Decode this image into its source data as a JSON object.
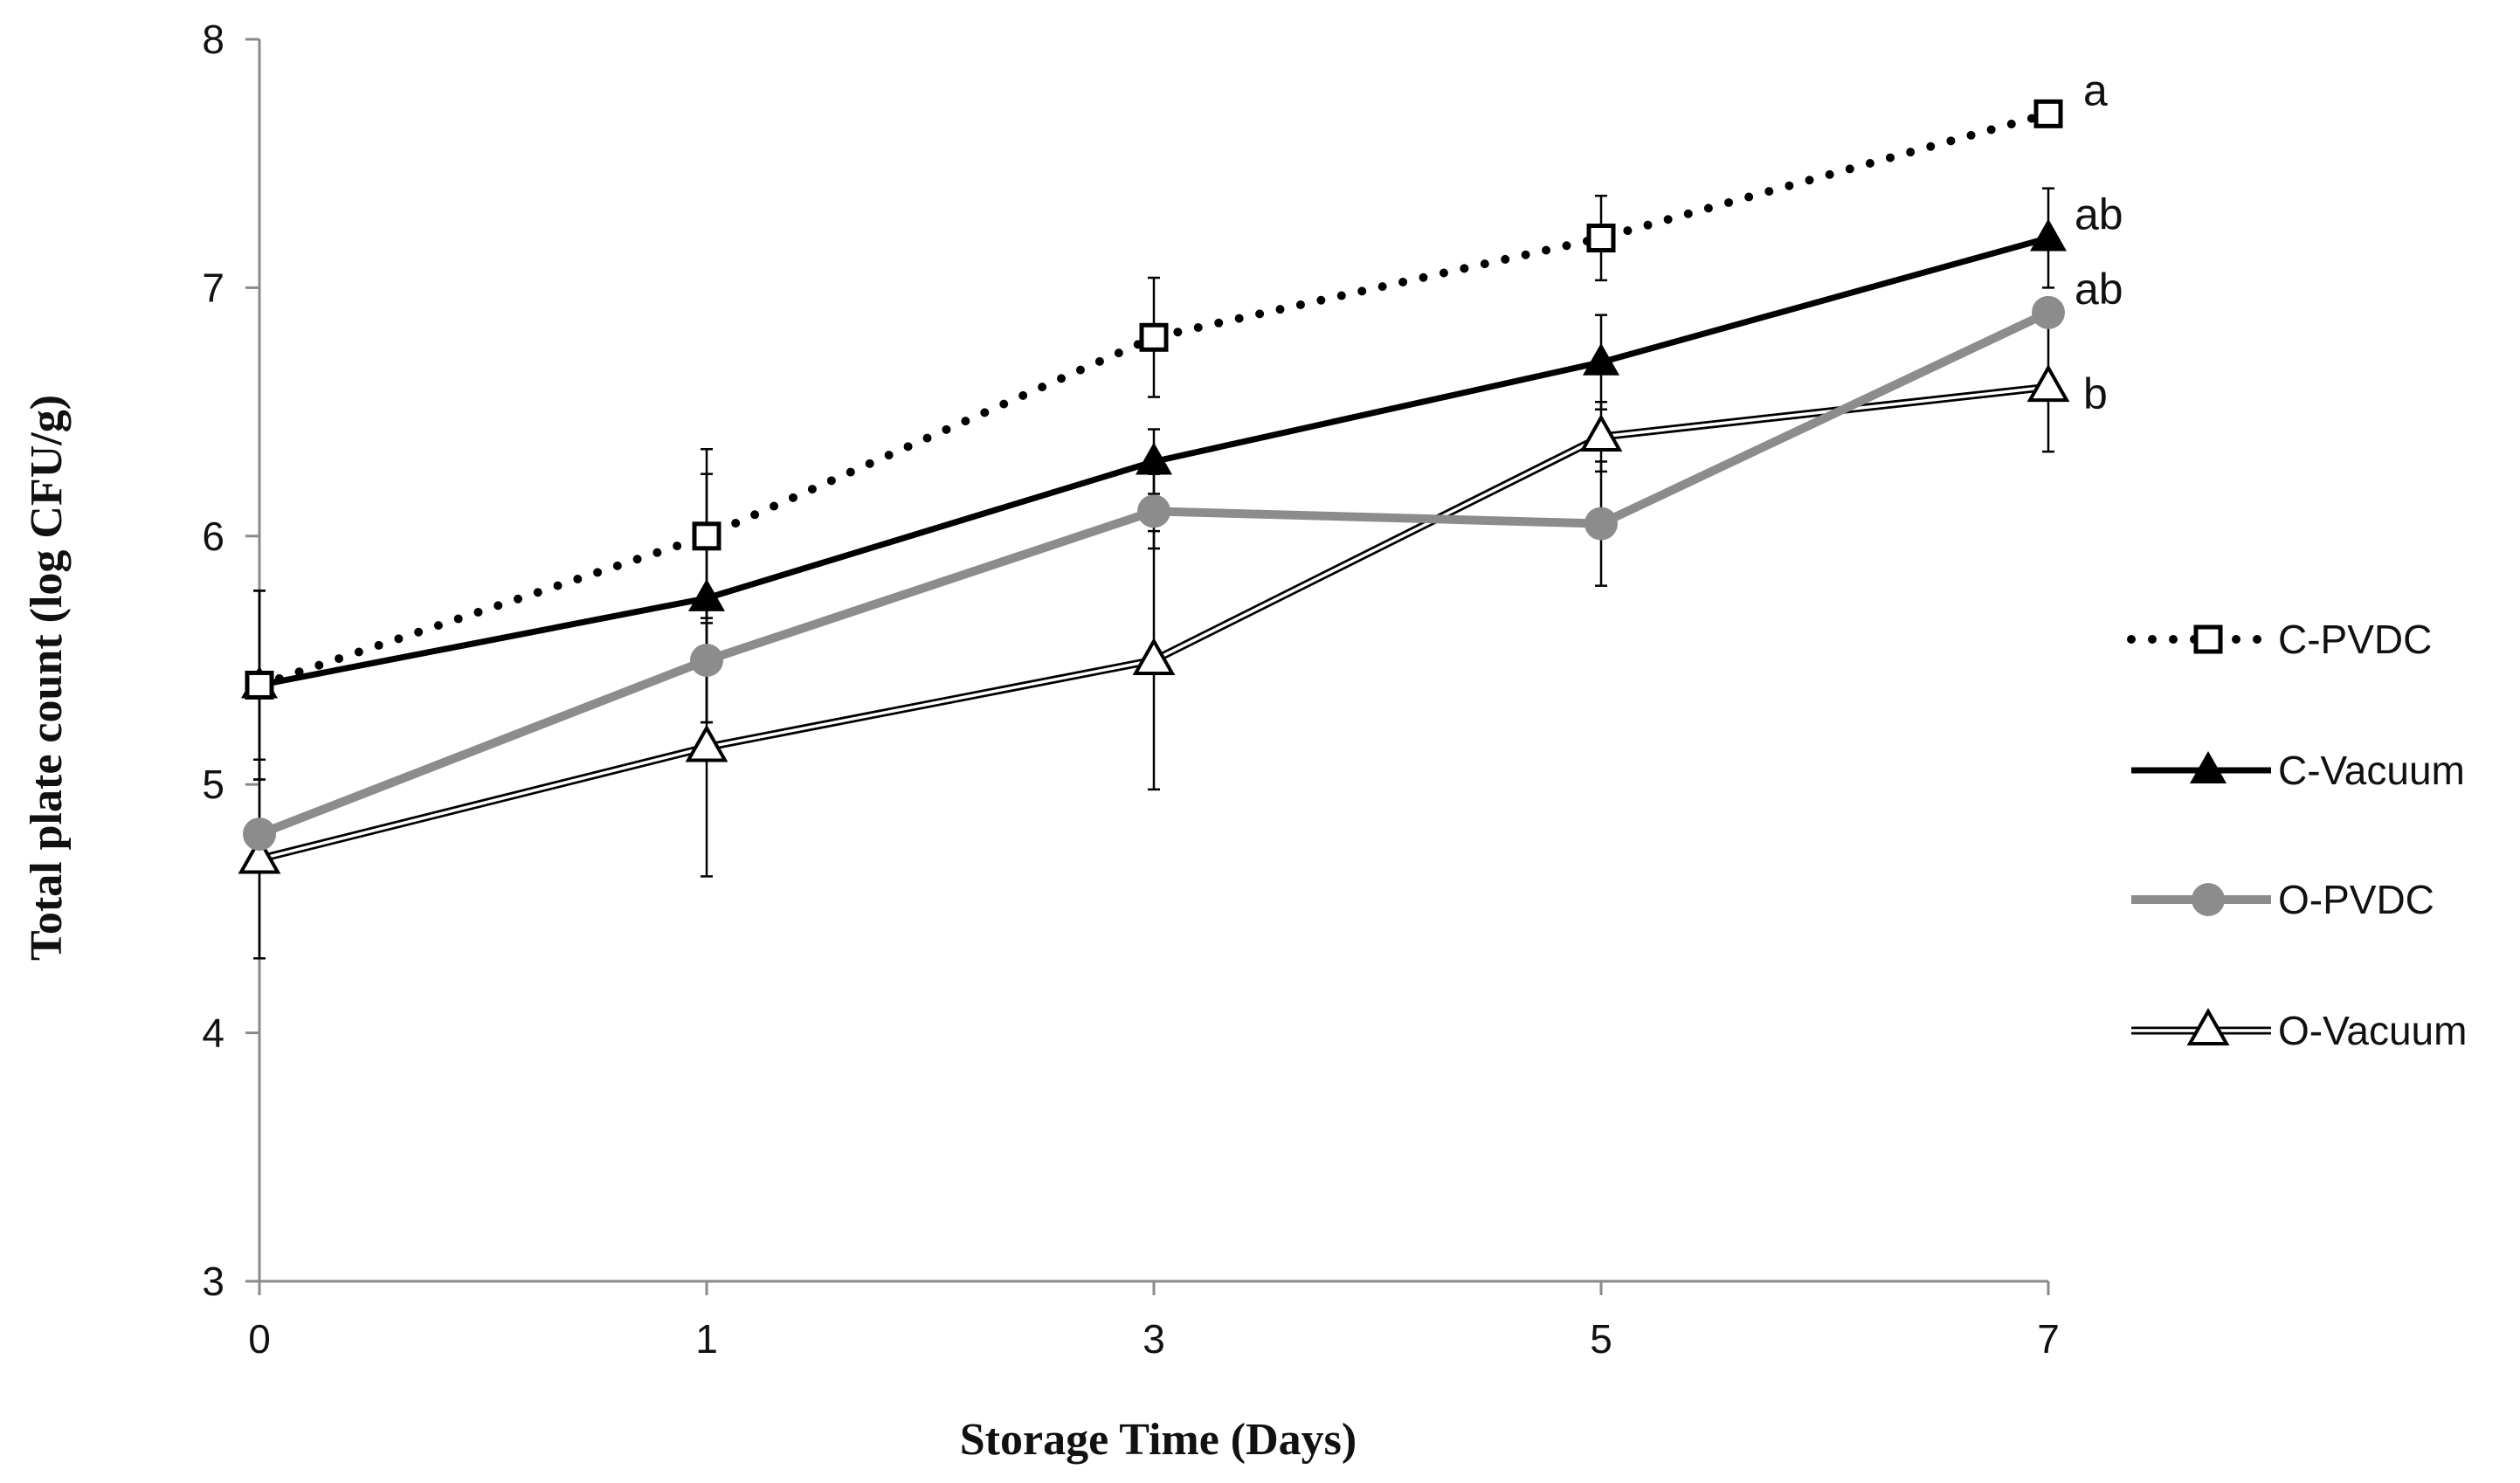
{
  "chart_data": {
    "type": "line",
    "title": "",
    "xlabel": "Storage Time  (Days)",
    "ylabel": "Total plate count (log CFU/g)",
    "x": [
      "0",
      "1",
      "3",
      "5",
      "7"
    ],
    "ylim": [
      3,
      8
    ],
    "yticks": [
      "3",
      "4",
      "5",
      "6",
      "7",
      "8"
    ],
    "grid": false,
    "legend_position": "right",
    "series": [
      {
        "name": "C-PVDC",
        "style": "dotted-black",
        "marker": "open-square",
        "color": "#000000",
        "values": [
          5.4,
          6.0,
          6.8,
          7.2,
          7.7
        ],
        "errors": [
          0.38,
          0.35,
          0.24,
          0.17,
          0.0
        ],
        "annotation": "a"
      },
      {
        "name": "C-Vacuum",
        "style": "solid-black",
        "marker": "filled-triangle",
        "color": "#000000",
        "values": [
          5.4,
          5.75,
          6.3,
          6.7,
          7.2
        ],
        "errors": [
          0.38,
          0.5,
          0.13,
          0.19,
          0.2
        ],
        "annotation": "ab"
      },
      {
        "name": "O-PVDC",
        "style": "solid-gray",
        "marker": "filled-circle",
        "color": "#8c8c8c",
        "values": [
          4.8,
          5.5,
          6.1,
          6.05,
          6.9
        ],
        "errors": [
          0.0,
          0.25,
          0.15,
          0.25,
          0.0
        ],
        "annotation": "ab"
      },
      {
        "name": "O-Vacuum",
        "style": "double-line",
        "marker": "open-triangle",
        "color": "#000000",
        "values": [
          4.7,
          5.15,
          5.5,
          6.4,
          6.6
        ],
        "errors": [
          0.4,
          0.52,
          0.52,
          0.14,
          0.26
        ],
        "annotation": "b"
      }
    ]
  }
}
